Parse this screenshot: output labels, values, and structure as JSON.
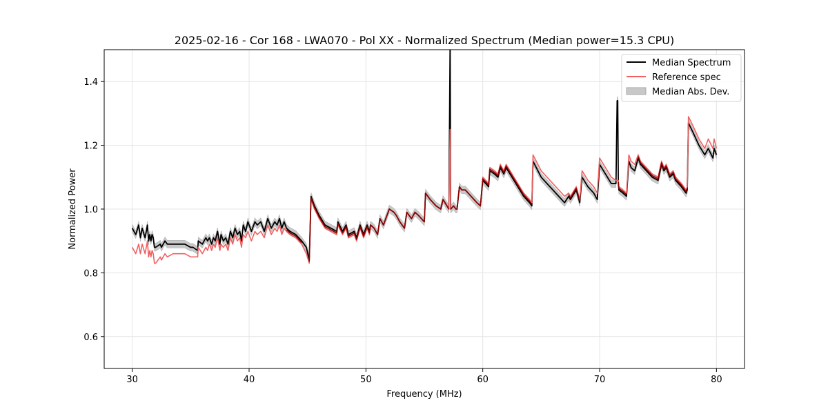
{
  "chart_data": {
    "type": "line",
    "title": "2025-02-16 - Cor 168 - LWA070 - Pol XX - Normalized Spectrum (Median power=15.3 CPU)",
    "xlabel": "Frequency (MHz)",
    "ylabel": "Normalized Power",
    "xlim": [
      27.6,
      82.4
    ],
    "ylim": [
      0.5,
      1.5
    ],
    "xticks": [
      30,
      40,
      50,
      60,
      70,
      80
    ],
    "yticks": [
      0.6,
      0.8,
      1.0,
      1.2,
      1.4
    ],
    "xtick_labels": [
      "30",
      "40",
      "50",
      "60",
      "70",
      "80"
    ],
    "ytick_labels": [
      "0.6",
      "0.8",
      "1.0",
      "1.2",
      "1.4"
    ],
    "grid": true,
    "legend_position": "top-right",
    "colors": {
      "median": "#000000",
      "reference": "#f06060",
      "mad": "#c8c8c8",
      "overlap": "#8b0000"
    },
    "series": [
      {
        "name": "Median Spectrum",
        "x": [
          30.0,
          30.3,
          30.55,
          30.7,
          30.85,
          31.1,
          31.3,
          31.4,
          31.5,
          31.6,
          31.7,
          31.8,
          31.9,
          32.0,
          32.4,
          32.5,
          32.8,
          33.0,
          33.5,
          34.0,
          34.5,
          35.0,
          35.2,
          35.6,
          35.65,
          36.0,
          36.3,
          36.45,
          36.6,
          36.8,
          36.95,
          37.1,
          37.3,
          37.5,
          37.6,
          37.8,
          38.0,
          38.2,
          38.4,
          38.6,
          38.8,
          39.0,
          39.2,
          39.35,
          39.5,
          39.7,
          39.9,
          40.2,
          40.5,
          40.7,
          41.0,
          41.3,
          41.6,
          41.9,
          42.2,
          42.4,
          42.6,
          42.8,
          43.0,
          43.2,
          43.5,
          44.0,
          44.5,
          44.9,
          45.15,
          45.3,
          45.6,
          46.0,
          46.5,
          47.0,
          47.5,
          47.6,
          48.0,
          48.3,
          48.5,
          49.0,
          49.2,
          49.5,
          49.8,
          50.1,
          50.3,
          50.4,
          50.7,
          51.0,
          51.2,
          51.5,
          52.0,
          52.4,
          52.6,
          52.9,
          53.3,
          53.5,
          53.9,
          54.2,
          54.5,
          55.0,
          55.1,
          55.5,
          56.0,
          56.4,
          56.6,
          57.1,
          57.2,
          57.21,
          57.25,
          57.26,
          57.5,
          57.7,
          57.8,
          58.0,
          58.2,
          58.5,
          59.0,
          59.5,
          59.8,
          60.0,
          60.5,
          60.6,
          61.0,
          61.3,
          61.5,
          61.8,
          62.0,
          62.5,
          63.0,
          63.5,
          64.0,
          64.2,
          64.3,
          65.0,
          66.0,
          67.0,
          67.35,
          67.5,
          68.0,
          68.3,
          68.5,
          69.0,
          69.5,
          69.8,
          70.0,
          70.5,
          71.0,
          71.4,
          71.5,
          71.55,
          71.6,
          71.65,
          72.0,
          72.3,
          72.5,
          72.7,
          73.0,
          73.3,
          73.5,
          74.0,
          74.5,
          75.0,
          75.3,
          75.5,
          75.7,
          76.0,
          76.3,
          76.5,
          77.0,
          77.4,
          77.5,
          77.6,
          78.0,
          78.5,
          79.0,
          79.3,
          79.7,
          79.8,
          80.0
        ],
        "y": [
          0.94,
          0.92,
          0.95,
          0.91,
          0.94,
          0.91,
          0.95,
          0.9,
          0.92,
          0.9,
          0.92,
          0.91,
          0.88,
          0.88,
          0.89,
          0.88,
          0.9,
          0.89,
          0.89,
          0.89,
          0.89,
          0.88,
          0.88,
          0.87,
          0.9,
          0.89,
          0.91,
          0.9,
          0.91,
          0.89,
          0.91,
          0.9,
          0.93,
          0.89,
          0.92,
          0.9,
          0.91,
          0.89,
          0.93,
          0.91,
          0.94,
          0.92,
          0.93,
          0.9,
          0.95,
          0.93,
          0.96,
          0.93,
          0.96,
          0.95,
          0.96,
          0.93,
          0.97,
          0.94,
          0.96,
          0.95,
          0.97,
          0.94,
          0.96,
          0.94,
          0.93,
          0.92,
          0.9,
          0.88,
          0.84,
          1.04,
          1.01,
          0.98,
          0.95,
          0.94,
          0.93,
          0.96,
          0.93,
          0.95,
          0.92,
          0.93,
          0.91,
          0.95,
          0.92,
          0.95,
          0.93,
          0.95,
          0.94,
          0.92,
          0.97,
          0.95,
          1.0,
          0.99,
          0.98,
          0.96,
          0.94,
          0.99,
          0.97,
          0.99,
          0.98,
          0.96,
          1.05,
          1.03,
          1.01,
          1.0,
          1.03,
          1.0,
          1.5,
          1.5,
          1.0,
          1.0,
          1.01,
          1.0,
          1.0,
          1.07,
          1.06,
          1.06,
          1.04,
          1.02,
          1.01,
          1.09,
          1.07,
          1.12,
          1.11,
          1.1,
          1.13,
          1.11,
          1.13,
          1.1,
          1.07,
          1.04,
          1.02,
          1.01,
          1.15,
          1.1,
          1.06,
          1.02,
          1.04,
          1.03,
          1.06,
          1.02,
          1.1,
          1.07,
          1.05,
          1.03,
          1.14,
          1.11,
          1.08,
          1.08,
          1.34,
          1.34,
          1.08,
          1.06,
          1.05,
          1.04,
          1.15,
          1.13,
          1.12,
          1.16,
          1.14,
          1.12,
          1.1,
          1.09,
          1.14,
          1.12,
          1.13,
          1.1,
          1.11,
          1.09,
          1.07,
          1.05,
          1.06,
          1.27,
          1.24,
          1.2,
          1.17,
          1.19,
          1.16,
          1.19,
          1.17
        ]
      },
      {
        "name": "Reference spec",
        "x": [
          30.0,
          30.3,
          30.55,
          30.7,
          30.85,
          31.1,
          31.3,
          31.4,
          31.5,
          31.6,
          31.7,
          31.8,
          31.9,
          32.0,
          32.4,
          32.5,
          32.8,
          33.0,
          33.5,
          34.0,
          34.5,
          35.0,
          35.2,
          35.6,
          35.65,
          36.0,
          36.3,
          36.45,
          36.6,
          36.8,
          36.95,
          37.1,
          37.3,
          37.5,
          37.6,
          37.8,
          38.0,
          38.2,
          38.4,
          38.6,
          38.8,
          39.0,
          39.2,
          39.35,
          39.5,
          39.7,
          39.9,
          40.2,
          40.5,
          40.7,
          41.0,
          41.3,
          41.6,
          41.9,
          42.2,
          42.4,
          42.6,
          42.8,
          43.0,
          43.2,
          43.5,
          44.0,
          44.5,
          44.9,
          45.15,
          45.3,
          45.6,
          46.0,
          46.5,
          47.0,
          47.5,
          47.6,
          48.0,
          48.3,
          48.5,
          49.0,
          49.2,
          49.5,
          49.8,
          50.1,
          50.3,
          50.4,
          50.7,
          51.0,
          51.2,
          51.5,
          52.0,
          52.4,
          52.6,
          52.9,
          53.3,
          53.5,
          53.9,
          54.2,
          54.5,
          55.0,
          55.1,
          55.5,
          56.0,
          56.4,
          56.6,
          57.1,
          57.2,
          57.21,
          57.25,
          57.26,
          57.5,
          57.7,
          57.8,
          58.0,
          58.2,
          58.5,
          59.0,
          59.5,
          59.8,
          60.0,
          60.5,
          60.6,
          61.0,
          61.3,
          61.5,
          61.8,
          62.0,
          62.5,
          63.0,
          63.5,
          64.0,
          64.2,
          64.3,
          65.0,
          66.0,
          67.0,
          67.35,
          67.5,
          68.0,
          68.3,
          68.5,
          69.0,
          69.5,
          69.8,
          70.0,
          70.5,
          71.0,
          71.4,
          71.5,
          71.55,
          71.6,
          71.65,
          72.0,
          72.3,
          72.5,
          72.7,
          73.0,
          73.3,
          73.5,
          74.0,
          74.5,
          75.0,
          75.3,
          75.5,
          75.7,
          76.0,
          76.3,
          76.5,
          77.0,
          77.4,
          77.5,
          77.6,
          78.0,
          78.5,
          79.0,
          79.3,
          79.7,
          79.8,
          80.0
        ],
        "y": [
          0.88,
          0.86,
          0.89,
          0.86,
          0.89,
          0.86,
          0.9,
          0.85,
          0.87,
          0.85,
          0.87,
          0.86,
          0.83,
          0.83,
          0.85,
          0.84,
          0.86,
          0.85,
          0.86,
          0.86,
          0.86,
          0.85,
          0.85,
          0.85,
          0.88,
          0.86,
          0.88,
          0.87,
          0.89,
          0.87,
          0.89,
          0.88,
          0.91,
          0.87,
          0.89,
          0.88,
          0.89,
          0.87,
          0.91,
          0.89,
          0.92,
          0.9,
          0.91,
          0.88,
          0.92,
          0.91,
          0.93,
          0.9,
          0.93,
          0.92,
          0.93,
          0.91,
          0.95,
          0.92,
          0.94,
          0.93,
          0.95,
          0.92,
          0.94,
          0.93,
          0.92,
          0.91,
          0.89,
          0.86,
          0.83,
          1.03,
          1.0,
          0.97,
          0.94,
          0.93,
          0.92,
          0.95,
          0.92,
          0.94,
          0.91,
          0.92,
          0.9,
          0.94,
          0.91,
          0.94,
          0.92,
          0.95,
          0.94,
          0.92,
          0.97,
          0.95,
          1.0,
          0.99,
          0.98,
          0.96,
          0.94,
          0.99,
          0.97,
          0.99,
          0.98,
          0.96,
          1.05,
          1.03,
          1.01,
          1.0,
          1.03,
          1.0,
          1.25,
          1.25,
          1.0,
          1.0,
          1.01,
          1.0,
          1.0,
          1.07,
          1.06,
          1.06,
          1.04,
          1.02,
          1.01,
          1.1,
          1.08,
          1.13,
          1.12,
          1.11,
          1.14,
          1.12,
          1.14,
          1.11,
          1.08,
          1.05,
          1.03,
          1.02,
          1.17,
          1.12,
          1.08,
          1.04,
          1.05,
          1.04,
          1.07,
          1.03,
          1.12,
          1.09,
          1.07,
          1.05,
          1.16,
          1.13,
          1.1,
          1.09,
          1.09,
          1.09,
          1.09,
          1.07,
          1.06,
          1.05,
          1.17,
          1.15,
          1.14,
          1.17,
          1.15,
          1.13,
          1.11,
          1.1,
          1.15,
          1.13,
          1.14,
          1.11,
          1.12,
          1.1,
          1.08,
          1.06,
          1.07,
          1.29,
          1.26,
          1.22,
          1.19,
          1.22,
          1.19,
          1.22,
          1.19
        ]
      }
    ],
    "mad_band": {
      "name": "Median Abs. Dev.",
      "width": 0.012
    }
  }
}
